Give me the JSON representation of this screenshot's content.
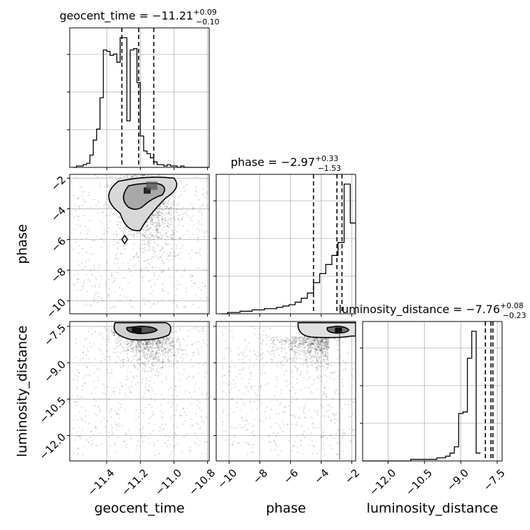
{
  "chart_data": {
    "type": "corner",
    "parameters": [
      "geocent_time",
      "phase",
      "luminosity_distance"
    ],
    "titles": [
      {
        "param": "geocent_time",
        "prefix": "geocent_time = ",
        "median": "−11.21",
        "plus": "+0.09",
        "minus": "−0.10"
      },
      {
        "param": "phase",
        "prefix": "phase = ",
        "median": "−2.97",
        "plus": "+0.33",
        "minus": "−1.53"
      },
      {
        "param": "luminosity_distance",
        "prefix": "luminosity_distance = ",
        "median": "−7.76",
        "plus": "+0.08",
        "minus": "−0.23"
      }
    ],
    "ranges": {
      "geocent_time": [
        -11.62,
        -10.79
      ],
      "phase": [
        -10.85,
        -1.75
      ],
      "luminosity_distance": [
        -13.05,
        -7.3
      ]
    },
    "ticks": {
      "geocent_time": {
        "values": [
          -11.4,
          -11.2,
          -11.0,
          -10.8
        ],
        "labels": [
          "−11.4",
          "−11.2",
          "−11.0",
          "−10.8"
        ]
      },
      "phase": {
        "values": [
          -10,
          -8,
          -6,
          -4,
          -2
        ],
        "labels": [
          "−10",
          "−8",
          "−6",
          "−4",
          "−2"
        ]
      },
      "luminosity_distance": {
        "values": [
          -12.0,
          -10.5,
          -9.0,
          -7.5
        ],
        "labels": [
          "−12.0",
          "−10.5",
          "−9.0",
          "−7.5"
        ]
      }
    },
    "quantiles": {
      "geocent_time": [
        -11.31,
        -11.21,
        -11.12
      ],
      "phase": [
        -4.5,
        -2.97,
        -2.64
      ],
      "luminosity_distance": [
        -7.99,
        -7.76,
        -7.68
      ]
    },
    "histograms": {
      "geocent_time": {
        "edges_start": -11.6,
        "bin_width": 0.02,
        "counts": [
          0,
          1,
          1,
          2,
          3,
          9,
          20,
          28,
          51,
          86,
          85,
          82,
          83,
          77,
          95,
          95,
          34,
          86,
          87,
          62,
          23,
          12,
          10,
          7,
          4,
          2,
          2,
          1,
          2,
          1,
          1,
          0,
          1,
          0,
          0,
          0,
          0,
          0,
          0,
          0,
          0
        ]
      },
      "phase": {
        "edges_start": -10.5,
        "bin_width": 0.4,
        "counts": [
          0,
          1,
          1,
          2,
          2,
          3,
          3,
          4,
          4,
          5,
          6,
          7,
          9,
          12,
          16,
          24,
          31,
          38,
          45,
          55,
          100,
          70,
          45
        ]
      },
      "luminosity_distance": {
        "edges_start": -13.05,
        "bin_width": 0.18,
        "counts": [
          0,
          0,
          0,
          0,
          0,
          0,
          0,
          0,
          0,
          0,
          0,
          1,
          1,
          1,
          1,
          1,
          1,
          2,
          2,
          3,
          5,
          9,
          30,
          31,
          65,
          82,
          5
        ]
      }
    },
    "grid": true
  }
}
